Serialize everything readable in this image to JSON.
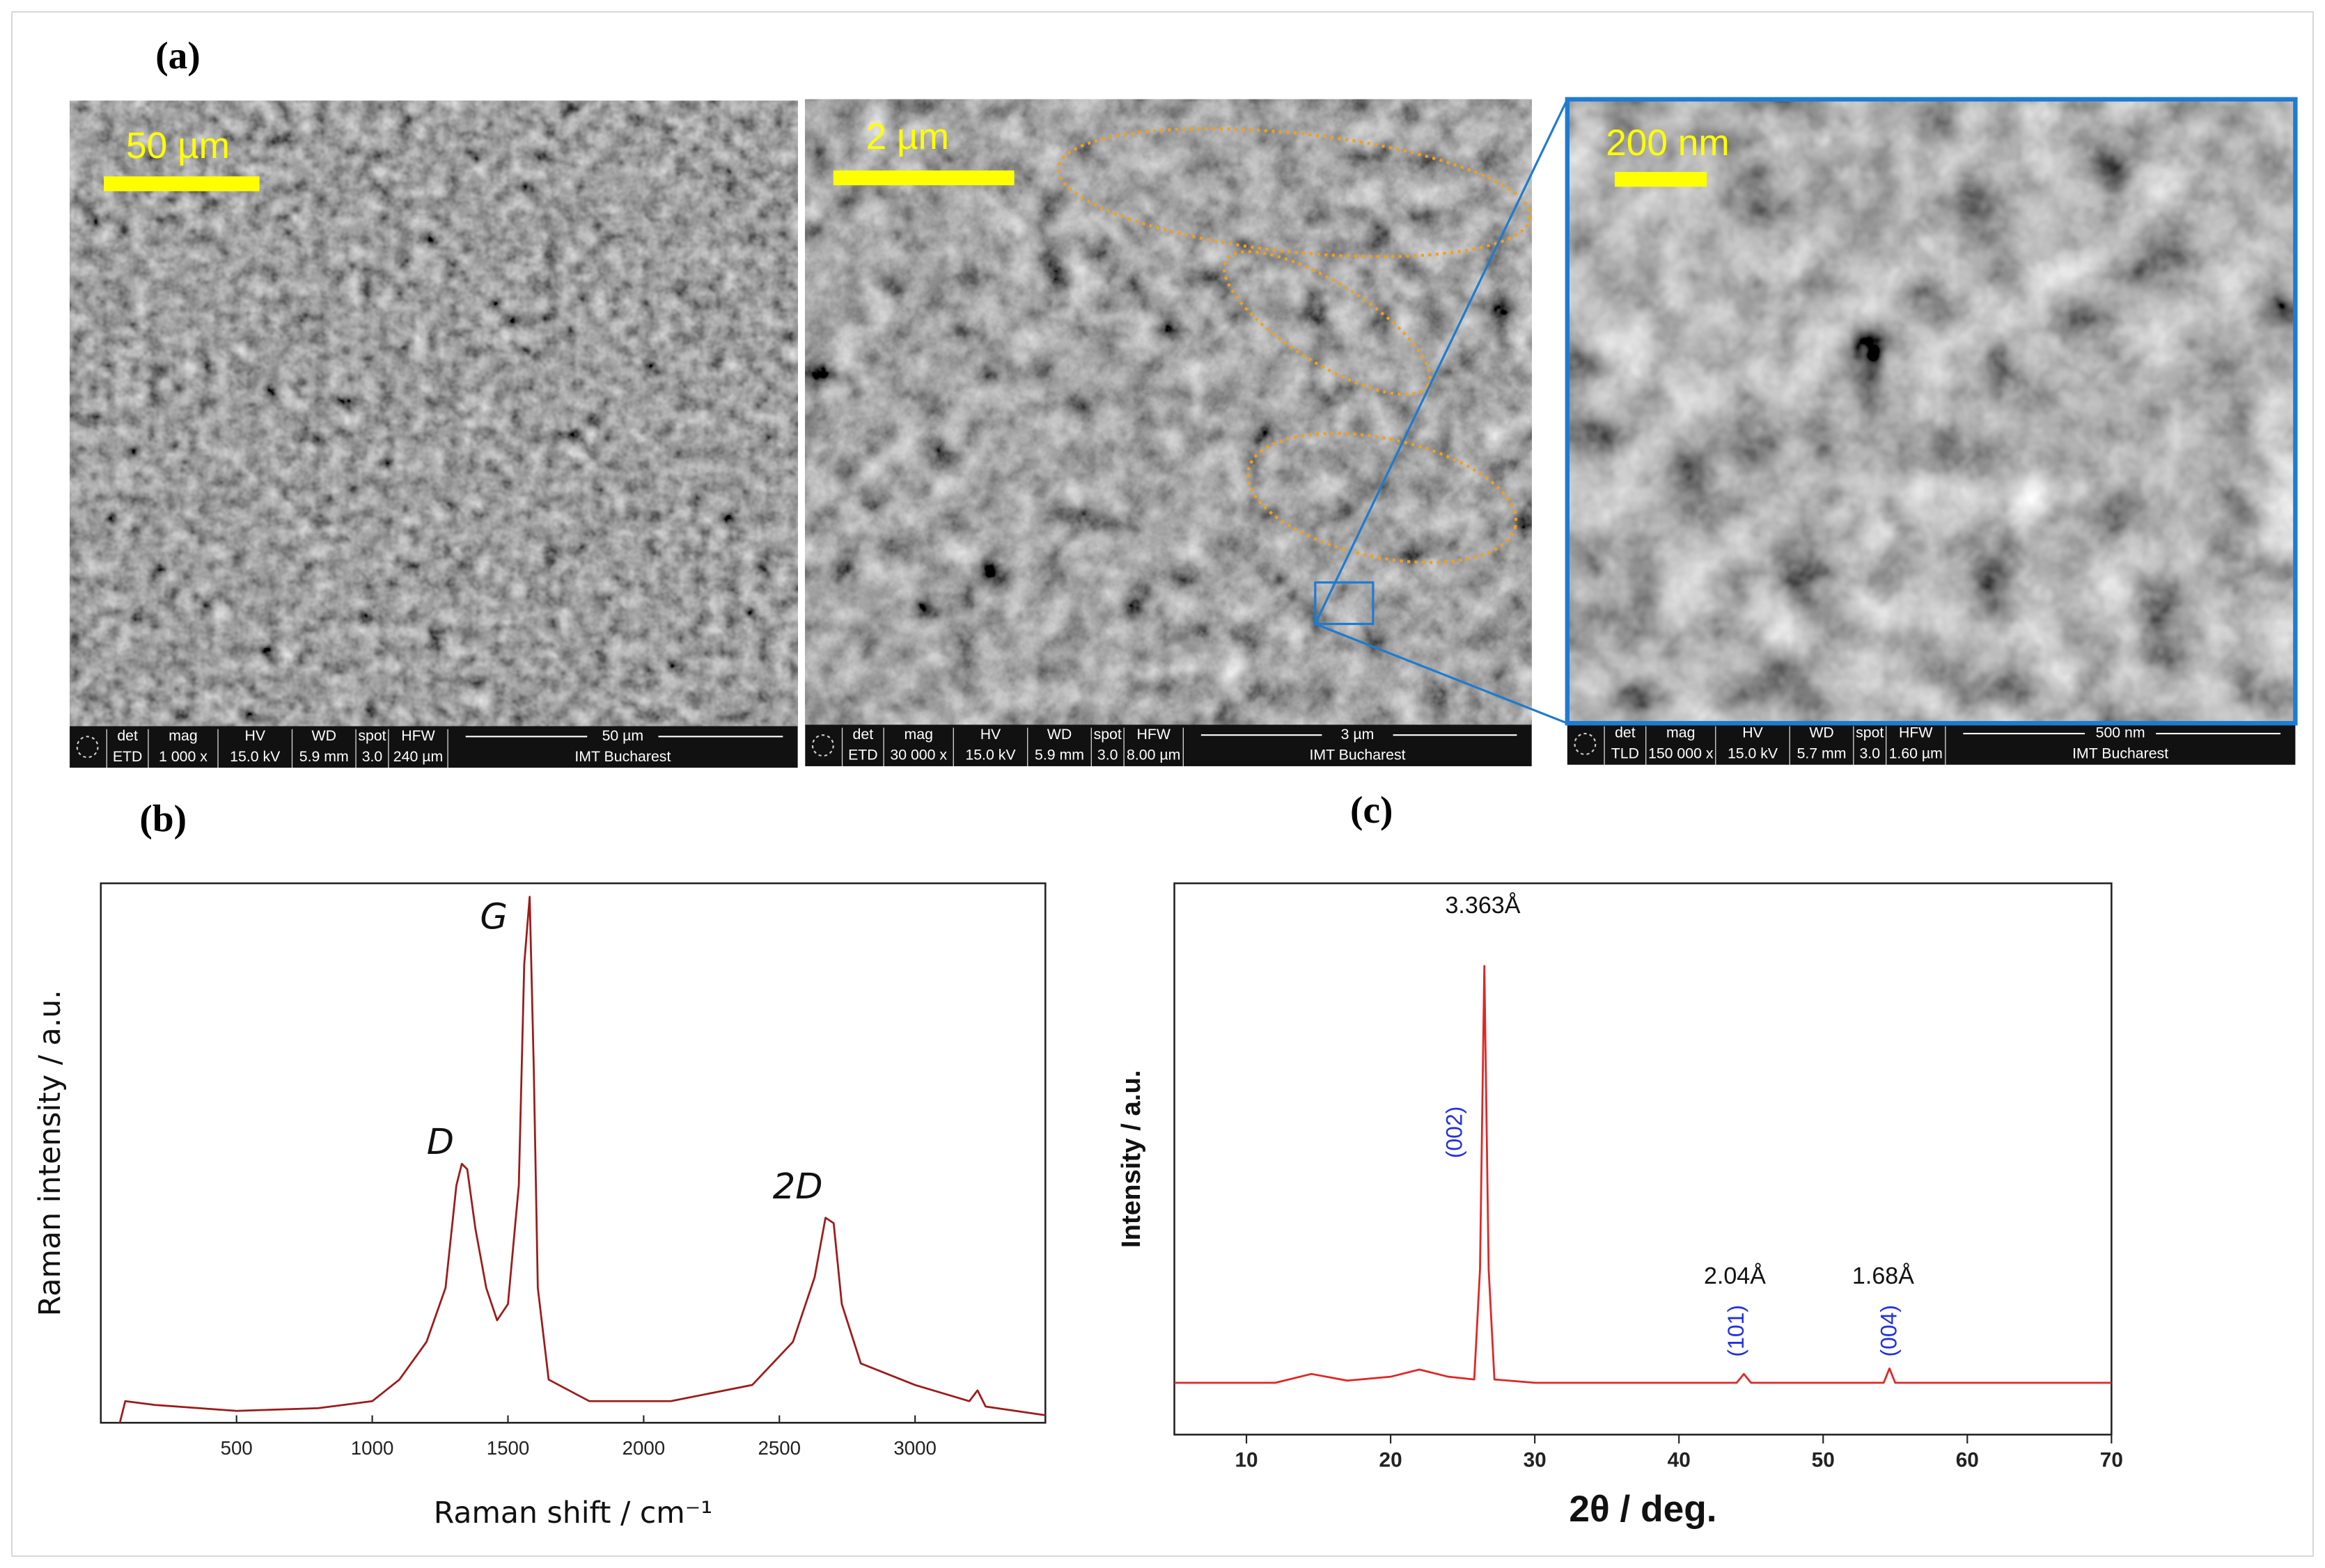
{
  "panel_labels": [
    "(a)",
    "(b)",
    "(c)"
  ],
  "sem_images": [
    {
      "scale_bar_label": "50 µm",
      "headers": [
        "det",
        "mag",
        "HV",
        "WD",
        "spot",
        "HFW"
      ],
      "values": [
        "ETD",
        "1 000 x",
        "15.0 kV",
        "5.9 mm",
        "3.0",
        "240 µm"
      ],
      "bar_label": "50 µm",
      "institution": "IMT Bucharest"
    },
    {
      "scale_bar_label": "2 µm",
      "headers": [
        "det",
        "mag",
        "HV",
        "WD",
        "spot",
        "HFW"
      ],
      "values": [
        "ETD",
        "30 000 x",
        "15.0 kV",
        "5.9 mm",
        "3.0",
        "8.00 µm"
      ],
      "bar_label": "3 µm",
      "institution": "IMT Bucharest"
    },
    {
      "scale_bar_label": "200 nm",
      "headers": [
        "det",
        "mag",
        "HV",
        "WD",
        "spot",
        "HFW"
      ],
      "values": [
        "TLD",
        "150 000 x",
        "15.0 kV",
        "5.7 mm",
        "3.0",
        "1.60 µm"
      ],
      "bar_label": "500 nm",
      "institution": "IMT Bucharest"
    }
  ],
  "chart_data": [
    {
      "type": "line",
      "xlabel": "Raman shift / cm⁻¹",
      "ylabel": "Raman intensity / a.u.",
      "annotations": [
        "G",
        "D",
        "2D"
      ],
      "x": [
        70,
        90,
        200,
        500,
        800,
        1000,
        1100,
        1200,
        1270,
        1310,
        1330,
        1350,
        1380,
        1420,
        1460,
        1500,
        1540,
        1560,
        1580,
        1595,
        1610,
        1650,
        1800,
        2100,
        2400,
        2550,
        2630,
        2670,
        2700,
        2730,
        2800,
        2900,
        3000,
        3200,
        3230,
        3260,
        3480
      ],
      "values": [
        0,
        4,
        3.3,
        2.2,
        2.7,
        4,
        8,
        15,
        25,
        44,
        48,
        47,
        36,
        25,
        19,
        22,
        44,
        85,
        97.5,
        66,
        25,
        8,
        4,
        4,
        7,
        15,
        27,
        38,
        37,
        22,
        11,
        9,
        7,
        4,
        6,
        3,
        1.4
      ],
      "color": "#9b1c1c",
      "xlim": [
        0,
        3480
      ],
      "ylim": [
        0,
        100
      ],
      "xticks": [
        500,
        1000,
        1500,
        2000,
        2500,
        3000
      ]
    },
    {
      "type": "line",
      "xlabel": "2θ / deg.",
      "ylabel": "Intensity / a.u.",
      "annotations": [
        "3.363Å",
        "(002)",
        "2.04Å",
        "(101)",
        "1.68Å",
        "(004)"
      ],
      "x": [
        5,
        12,
        14.5,
        17,
        20,
        22,
        24,
        25.8,
        26.2,
        26.5,
        26.8,
        27.2,
        30,
        44,
        44.5,
        45,
        54.2,
        54.6,
        55,
        70
      ],
      "values": [
        9.4,
        9.4,
        11,
        9.8,
        10.5,
        11.8,
        10.5,
        10,
        30,
        85,
        30,
        10,
        9.4,
        9.4,
        11,
        9.4,
        9.4,
        12,
        9.4,
        9.4
      ],
      "color": "#e02626",
      "xlim": [
        5,
        70
      ],
      "ylim": [
        0,
        100
      ],
      "xticks": [
        10,
        20,
        30,
        40,
        50,
        60,
        70
      ]
    }
  ]
}
